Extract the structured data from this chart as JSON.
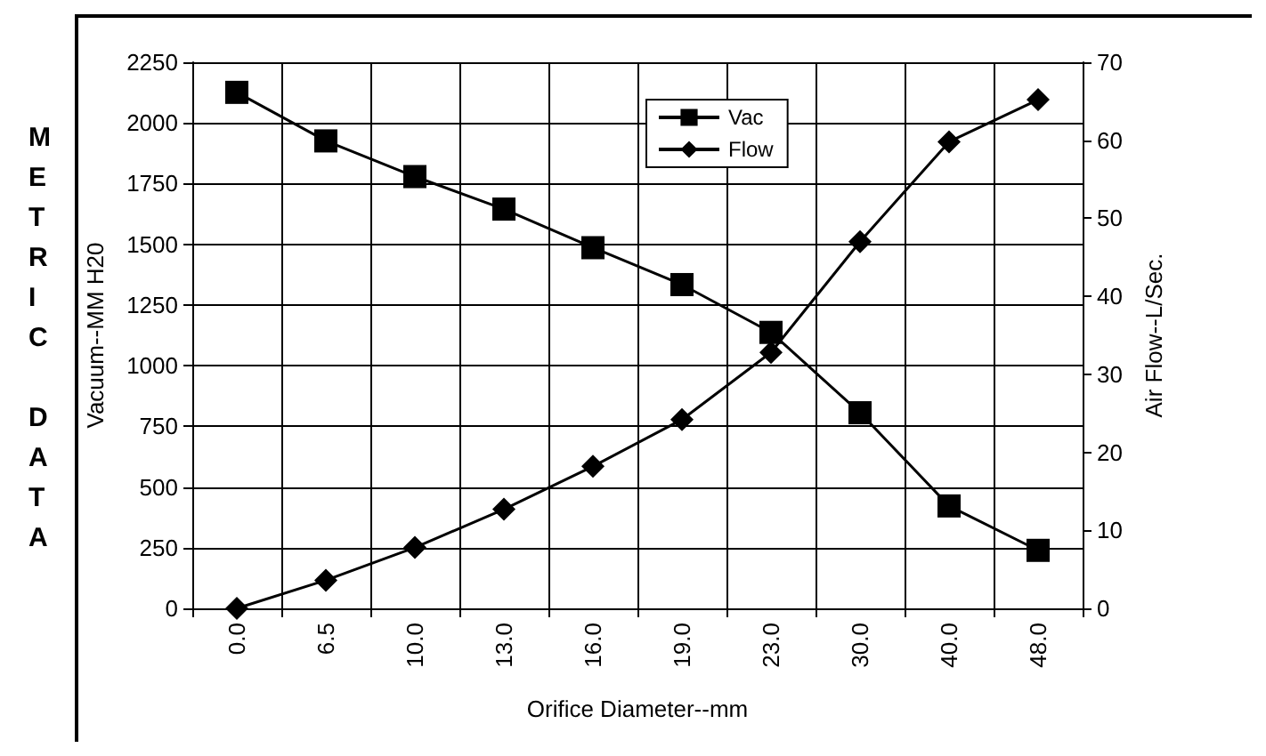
{
  "chart_data": {
    "type": "line",
    "xlabel": "Orifice Diameter--mm",
    "ylabel": "Vacuum--MM H20",
    "y2label": "Air Flow--L/Sec.",
    "categories": [
      "0.0",
      "6.5",
      "10.0",
      "13.0",
      "16.0",
      "19.0",
      "23.0",
      "30.0",
      "40.0",
      "48.0"
    ],
    "series": [
      {
        "name": "Vac",
        "color": "#000000",
        "marker": "square",
        "values": [
          2126,
          1926,
          1779,
          1645,
          1486,
          1334,
          1137,
          806,
          422,
          239
        ]
      },
      {
        "name": "Flow",
        "color": "#000000",
        "marker": "diamond",
        "axis": "y2",
        "values": [
          0,
          3.6,
          7.8,
          12.7,
          18.2,
          24.2,
          32.8,
          47.0,
          59.8,
          65.2
        ]
      }
    ],
    "ylim": [
      0,
      2250
    ],
    "yticks": [
      0,
      250,
      500,
      750,
      1000,
      1250,
      1500,
      1750,
      2000,
      2250
    ],
    "y2lim": [
      0,
      70
    ],
    "y2ticks": [
      0,
      10,
      20,
      30,
      40,
      50,
      60,
      70
    ],
    "grid": true,
    "legend": "top",
    "line_style": "solid",
    "annotations": [
      "METRIC DATA"
    ]
  }
}
